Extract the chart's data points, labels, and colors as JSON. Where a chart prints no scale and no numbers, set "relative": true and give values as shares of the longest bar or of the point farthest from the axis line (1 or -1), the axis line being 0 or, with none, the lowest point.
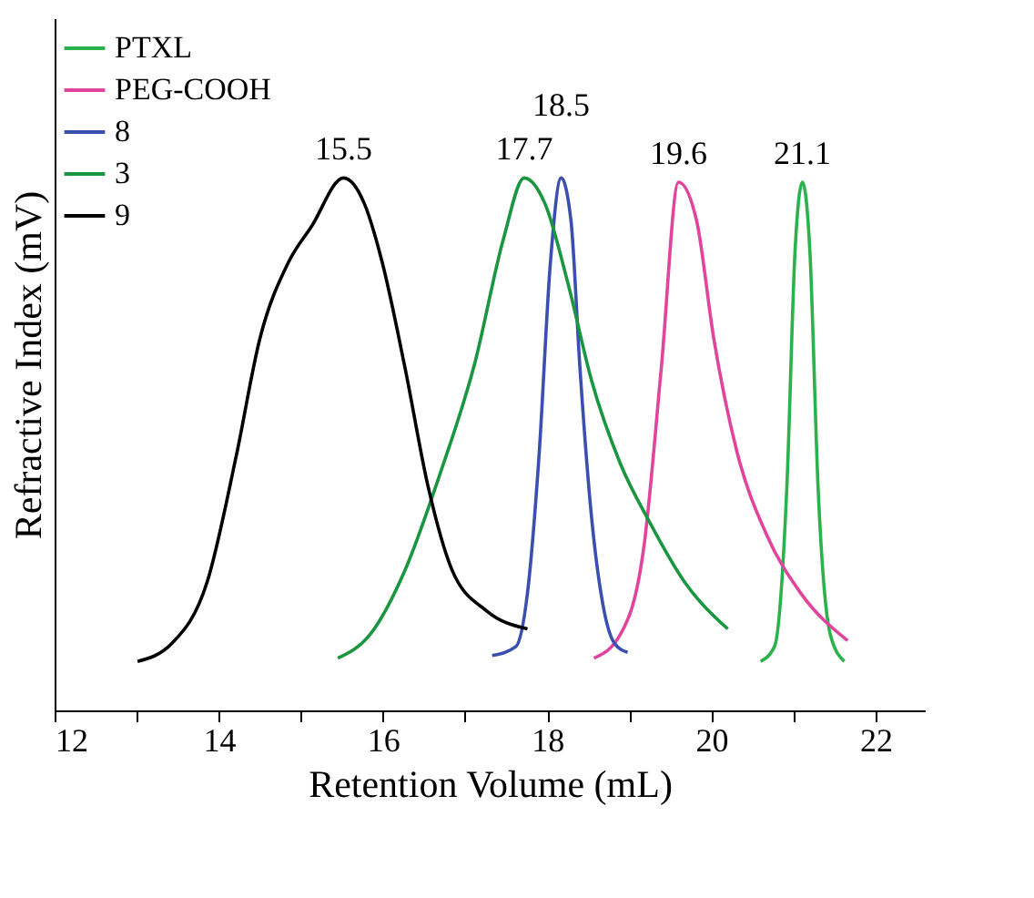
{
  "chart_data": {
    "type": "line",
    "relative": true,
    "xlabel": "Retention Volume (mL)",
    "ylabel": "Refractive Index (mV)",
    "xlim": [
      12,
      22.6
    ],
    "xticks": [
      12,
      {
        "value": 13,
        "label": null
      },
      14,
      {
        "value": 15,
        "label": null
      },
      16,
      {
        "value": 17,
        "label": null
      },
      18,
      {
        "value": 19,
        "label": null
      },
      20,
      {
        "value": 21,
        "label": null
      },
      22
    ],
    "grid": false,
    "legend": "top left",
    "marker": "none",
    "line_style": "solid",
    "series": [
      {
        "name": "PTXL",
        "color": "#2bb24c",
        "x": [
          20.6,
          20.77,
          20.92,
          21.02,
          21.11,
          21.2,
          21.3,
          21.45,
          21.62
        ],
        "values": [
          0.092,
          0.12,
          0.42,
          0.864,
          0.992,
          0.864,
          0.42,
          0.142,
          0.092
        ]
      },
      {
        "name": "PEG-COOH",
        "color": "#e0449c",
        "x": [
          18.57,
          18.89,
          19.18,
          19.39,
          19.6,
          19.82,
          20.03,
          20.31,
          20.67,
          21.09,
          21.66
        ],
        "values": [
          0.098,
          0.142,
          0.309,
          0.642,
          0.992,
          0.92,
          0.698,
          0.487,
          0.331,
          0.22,
          0.131
        ]
      },
      {
        "name": "8",
        "color": "#3a4fb0",
        "x": [
          17.33,
          17.62,
          17.76,
          17.9,
          18.04,
          18.17,
          18.29,
          18.4,
          18.54,
          18.68,
          18.82,
          18.98
        ],
        "values": [
          0.103,
          0.12,
          0.22,
          0.476,
          0.842,
          1.0,
          0.92,
          0.642,
          0.364,
          0.198,
          0.126,
          0.109
        ]
      },
      {
        "name": "3",
        "color": "#1a9640",
        "x": [
          15.45,
          15.84,
          16.27,
          16.69,
          17.12,
          17.47,
          17.72,
          17.97,
          18.26,
          18.54,
          18.89,
          19.25,
          19.67,
          20.2
        ],
        "values": [
          0.098,
          0.142,
          0.264,
          0.442,
          0.653,
          0.887,
          1.0,
          0.953,
          0.798,
          0.62,
          0.464,
          0.353,
          0.242,
          0.153
        ]
      },
      {
        "name": "9",
        "color": "#000000",
        "x": [
          13.01,
          13.43,
          13.86,
          14.21,
          14.5,
          14.85,
          15.13,
          15.52,
          15.77,
          15.99,
          16.27,
          16.55,
          16.84,
          17.26,
          17.76
        ],
        "values": [
          0.092,
          0.126,
          0.242,
          0.476,
          0.698,
          0.842,
          0.909,
          1.0,
          0.953,
          0.842,
          0.642,
          0.42,
          0.264,
          0.187,
          0.153
        ]
      }
    ],
    "annotations": [
      {
        "text": "15.5",
        "x": 15.52,
        "y": 1.0
      },
      {
        "text": "17.7",
        "x": 17.72,
        "y": 1.0
      },
      {
        "text": "18.5",
        "x": 18.17,
        "y": 1.0
      },
      {
        "text": "19.6",
        "x": 19.6,
        "y": 0.992
      },
      {
        "text": "21.1",
        "x": 21.11,
        "y": 0.992
      }
    ]
  }
}
